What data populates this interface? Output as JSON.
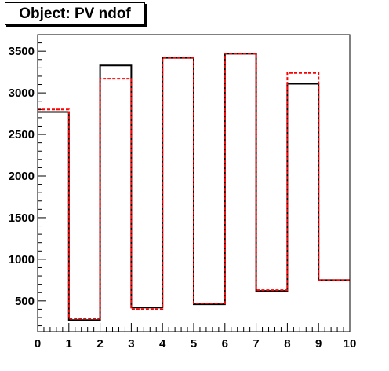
{
  "title": "Object: PV ndof",
  "colors": {
    "series_black": "#000000",
    "series_red": "#ff0000",
    "frame": "#000000"
  },
  "chart_data": {
    "type": "line",
    "style": "step histogram",
    "bin_edges": [
      0,
      1,
      2,
      3,
      4,
      5,
      6,
      7,
      8,
      9,
      10
    ],
    "xlim": [
      0,
      10
    ],
    "ylim": [
      130,
      3700
    ],
    "xticks": [
      0,
      1,
      2,
      3,
      4,
      5,
      6,
      7,
      8,
      9,
      10
    ],
    "yticks": [
      500,
      1000,
      1500,
      2000,
      2500,
      3000,
      3500
    ],
    "series": [
      {
        "color": "#000000",
        "line": "solid",
        "values": [
          2770,
          270,
          3330,
          420,
          3420,
          460,
          3470,
          620,
          3110,
          750
        ]
      },
      {
        "color": "#ff0000",
        "line": "dashed",
        "values": [
          2800,
          290,
          3170,
          400,
          3420,
          470,
          3470,
          630,
          3240,
          750
        ]
      }
    ],
    "xlabel": "",
    "ylabel": "",
    "grid": false,
    "legend": "none"
  }
}
